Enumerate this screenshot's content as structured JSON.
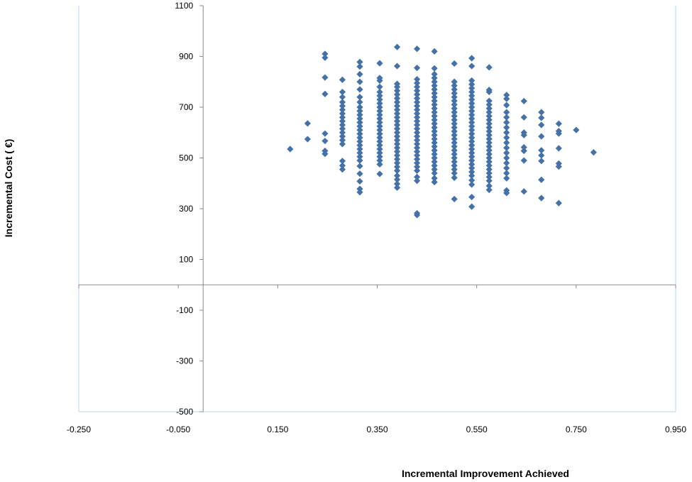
{
  "chart_data": {
    "type": "scatter",
    "title": "",
    "xlabel": "Incremental Improvement Achieved",
    "ylabel": "Incremental Cost ( €)",
    "xlim": [
      -0.25,
      0.95
    ],
    "ylim": [
      -500,
      1100
    ],
    "x_ticks": [
      "-0.250",
      "-0.050",
      "0.150",
      "0.350",
      "0.550",
      "0.750",
      "0.950"
    ],
    "y_ticks": [
      "1100",
      "900",
      "700",
      "500",
      "300",
      "100",
      "-100",
      "-300",
      "-500"
    ],
    "grid": false,
    "legend": "none",
    "marker": "diamond",
    "marker_color": "#4472A8",
    "columns": [
      {
        "x": 0.175,
        "y": [
          535
        ]
      },
      {
        "x": 0.21,
        "y": [
          636,
          574
        ]
      },
      {
        "x": 0.245,
        "y": [
          910,
          895,
          817,
          752,
          596,
          567,
          528,
          516
        ]
      },
      {
        "x": 0.28,
        "y": [
          808,
          760,
          740,
          720,
          705,
          690,
          675,
          660,
          645,
          630,
          615,
          600,
          585,
          570,
          555,
          488,
          470,
          455
        ]
      },
      {
        "x": 0.315,
        "y": [
          878,
          860,
          830,
          800,
          770,
          740,
          720,
          700,
          685,
          670,
          655,
          640,
          625,
          610,
          595,
          580,
          565,
          550,
          535,
          520,
          505,
          490,
          468,
          438,
          408,
          378,
          365
        ]
      },
      {
        "x": 0.355,
        "y": [
          873,
          815,
          805,
          780,
          760,
          745,
          730,
          715,
          700,
          685,
          670,
          655,
          640,
          625,
          610,
          595,
          580,
          565,
          550,
          535,
          520,
          505,
          490,
          475,
          437
        ]
      },
      {
        "x": 0.39,
        "y": [
          937,
          862,
          792,
          780,
          765,
          750,
          735,
          720,
          705,
          690,
          675,
          660,
          645,
          630,
          615,
          600,
          585,
          570,
          555,
          540,
          525,
          510,
          495,
          480,
          465,
          450,
          430,
          415,
          398,
          383
        ]
      },
      {
        "x": 0.43,
        "y": [
          930,
          855,
          810,
          795,
          780,
          765,
          750,
          735,
          720,
          705,
          690,
          675,
          660,
          645,
          630,
          615,
          600,
          585,
          570,
          555,
          540,
          525,
          510,
          495,
          480,
          465,
          450,
          425,
          410,
          282,
          275
        ]
      },
      {
        "x": 0.465,
        "y": [
          920,
          853,
          830,
          815,
          800,
          785,
          770,
          755,
          740,
          725,
          710,
          695,
          680,
          665,
          650,
          635,
          620,
          605,
          590,
          575,
          560,
          545,
          530,
          515,
          500,
          485,
          470,
          455,
          440,
          420,
          405
        ]
      },
      {
        "x": 0.505,
        "y": [
          872,
          800,
          785,
          770,
          755,
          740,
          725,
          710,
          695,
          680,
          665,
          650,
          635,
          620,
          605,
          590,
          575,
          560,
          545,
          530,
          515,
          500,
          485,
          470,
          455,
          440,
          422,
          338
        ]
      },
      {
        "x": 0.54,
        "y": [
          893,
          862,
          805,
          790,
          775,
          760,
          745,
          730,
          715,
          700,
          685,
          670,
          655,
          640,
          625,
          610,
          595,
          580,
          565,
          550,
          535,
          520,
          505,
          490,
          475,
          460,
          445,
          430,
          412,
          395,
          346,
          308
        ]
      },
      {
        "x": 0.575,
        "y": [
          857,
          768,
          760,
          725,
          710,
          695,
          680,
          665,
          650,
          635,
          620,
          605,
          590,
          575,
          560,
          545,
          530,
          515,
          500,
          485,
          470,
          455,
          440,
          425,
          410,
          390,
          374
        ]
      },
      {
        "x": 0.61,
        "y": [
          748,
          733,
          708,
          680,
          660,
          640,
          620,
          600,
          580,
          560,
          540,
          520,
          500,
          480,
          460,
          440,
          420,
          372,
          362
        ]
      },
      {
        "x": 0.645,
        "y": [
          724,
          660,
          600,
          590,
          542,
          528,
          490,
          368
        ]
      },
      {
        "x": 0.68,
        "y": [
          680,
          658,
          630,
          585,
          530,
          510,
          488,
          414,
          342
        ]
      },
      {
        "x": 0.715,
        "y": [
          635,
          606,
          596,
          538,
          478,
          466,
          322
        ]
      },
      {
        "x": 0.75,
        "y": [
          610
        ]
      },
      {
        "x": 0.785,
        "y": [
          522
        ]
      }
    ]
  }
}
